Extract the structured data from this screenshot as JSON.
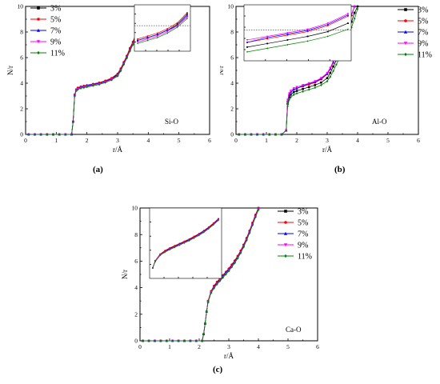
{
  "chart_data": [
    {
      "type": "line",
      "caption": "(a)",
      "annotation": "Si-O",
      "xlabel": "r/Å",
      "ylabel": "N/r",
      "xlim": [
        0,
        6
      ],
      "ylim": [
        0,
        10
      ],
      "xticks": [
        0,
        1,
        2,
        3,
        4,
        5,
        6
      ],
      "yticks": [
        0,
        2,
        4,
        6,
        8,
        10
      ],
      "legend_position": "top-left",
      "inset": "top-right",
      "series": [
        {
          "name": "3%",
          "color": "#000000",
          "marker": "square",
          "x": [
            0.1,
            0.3,
            0.5,
            0.7,
            0.9,
            1.1,
            1.3,
            1.5,
            1.55,
            1.6,
            1.65,
            1.7,
            1.8,
            1.9,
            2.0,
            2.2,
            2.4,
            2.6,
            2.8,
            3.0,
            3.1,
            3.2,
            3.3,
            3.4,
            3.5,
            3.6,
            3.7,
            3.8,
            3.9
          ],
          "y": [
            0,
            0,
            0,
            0,
            0,
            0,
            0,
            0,
            1.0,
            3.1,
            3.5,
            3.6,
            3.7,
            3.75,
            3.8,
            3.9,
            4.0,
            4.15,
            4.35,
            4.7,
            5.1,
            5.6,
            6.1,
            6.7,
            7.2,
            7.8,
            8.5,
            9.2,
            9.9
          ]
        },
        {
          "name": "5%",
          "color": "#ff0000",
          "marker": "circle",
          "x": [
            0.1,
            0.3,
            0.5,
            0.7,
            0.9,
            1.1,
            1.3,
            1.5,
            1.55,
            1.6,
            1.65,
            1.7,
            1.8,
            1.9,
            2.0,
            2.2,
            2.4,
            2.6,
            2.8,
            3.0,
            3.1,
            3.2,
            3.3,
            3.4,
            3.5,
            3.6,
            3.7,
            3.8,
            3.9
          ],
          "y": [
            0,
            0,
            0,
            0,
            0,
            0,
            0,
            0,
            1.0,
            3.1,
            3.5,
            3.65,
            3.75,
            3.8,
            3.85,
            3.95,
            4.05,
            4.2,
            4.4,
            4.75,
            5.15,
            5.65,
            6.15,
            6.75,
            7.25,
            7.85,
            8.55,
            9.25,
            9.95
          ]
        },
        {
          "name": "7%",
          "color": "#0000ff",
          "marker": "triangle",
          "x": [
            0.1,
            0.3,
            0.5,
            0.7,
            0.9,
            1.1,
            1.3,
            1.5,
            1.55,
            1.6,
            1.65,
            1.7,
            1.8,
            1.9,
            2.0,
            2.2,
            2.4,
            2.6,
            2.8,
            3.0,
            3.1,
            3.2,
            3.3,
            3.4,
            3.5,
            3.6,
            3.7,
            3.8,
            3.9
          ],
          "y": [
            0,
            0,
            0,
            0,
            0,
            0,
            0,
            0,
            1.0,
            3.05,
            3.45,
            3.6,
            3.7,
            3.75,
            3.8,
            3.9,
            4.0,
            4.15,
            4.3,
            4.65,
            5.05,
            5.55,
            6.05,
            6.6,
            7.1,
            7.7,
            8.4,
            9.1,
            9.8
          ]
        },
        {
          "name": "9%",
          "color": "#ff00ff",
          "marker": "triangle-down",
          "x": [
            0.1,
            0.3,
            0.5,
            0.7,
            0.9,
            1.1,
            1.3,
            1.5,
            1.55,
            1.6,
            1.65,
            1.7,
            1.8,
            1.9,
            2.0,
            2.2,
            2.4,
            2.6,
            2.8,
            3.0,
            3.1,
            3.2,
            3.3,
            3.4,
            3.5,
            3.6,
            3.7,
            3.8,
            3.9
          ],
          "y": [
            0,
            0,
            0,
            0,
            0,
            0,
            0,
            0,
            1.0,
            3.05,
            3.45,
            3.55,
            3.65,
            3.7,
            3.75,
            3.85,
            3.95,
            4.1,
            4.3,
            4.6,
            5.0,
            5.5,
            6.0,
            6.55,
            7.05,
            7.65,
            8.35,
            9.05,
            9.75
          ]
        },
        {
          "name": "11%",
          "color": "#008000",
          "marker": "diamond",
          "x": [
            0.1,
            0.3,
            0.5,
            0.7,
            0.9,
            1.1,
            1.3,
            1.5,
            1.55,
            1.6,
            1.65,
            1.7,
            1.8,
            1.9,
            2.0,
            2.2,
            2.4,
            2.6,
            2.8,
            3.0,
            3.1,
            3.2,
            3.3,
            3.4,
            3.5,
            3.6,
            3.7,
            3.8,
            3.9
          ],
          "y": [
            0,
            0,
            0,
            0,
            0,
            0,
            0,
            0,
            1.0,
            3.0,
            3.4,
            3.5,
            3.6,
            3.65,
            3.7,
            3.8,
            3.9,
            4.05,
            4.25,
            4.55,
            4.95,
            5.45,
            5.95,
            6.5,
            7.0,
            7.6,
            8.3,
            9.0,
            9.7
          ]
        }
      ]
    },
    {
      "type": "line",
      "caption": "(b)",
      "annotation": "Al-O",
      "xlabel": "r/Å",
      "ylabel": "N/r",
      "xlim": [
        0,
        6
      ],
      "ylim": [
        0,
        10
      ],
      "xticks": [
        0,
        1,
        2,
        3,
        4,
        5,
        6
      ],
      "yticks": [
        0,
        2,
        4,
        6,
        8,
        10
      ],
      "legend_position": "top-right",
      "inset": "top-left",
      "series": [
        {
          "name": "3%",
          "color": "#000000",
          "marker": "square",
          "x": [
            0.1,
            0.3,
            0.5,
            0.7,
            0.9,
            1.1,
            1.3,
            1.5,
            1.65,
            1.7,
            1.75,
            1.8,
            1.9,
            2.0,
            2.2,
            2.4,
            2.6,
            2.8,
            3.0,
            3.1,
            3.2,
            3.3,
            3.4,
            3.5,
            3.6,
            3.7,
            3.8,
            3.9,
            4.0
          ],
          "y": [
            0,
            0,
            0,
            0,
            0,
            0,
            0,
            0,
            0.3,
            2.4,
            2.9,
            3.1,
            3.3,
            3.4,
            3.55,
            3.7,
            3.85,
            4.05,
            4.4,
            4.8,
            5.3,
            5.8,
            6.3,
            6.9,
            7.5,
            8.1,
            8.8,
            9.5,
            10.0
          ]
        },
        {
          "name": "5%",
          "color": "#ff0000",
          "marker": "circle",
          "x": [
            0.1,
            0.3,
            0.5,
            0.7,
            0.9,
            1.1,
            1.3,
            1.5,
            1.65,
            1.7,
            1.75,
            1.8,
            1.9,
            2.0,
            2.2,
            2.4,
            2.6,
            2.8,
            3.0,
            3.1,
            3.2,
            3.3,
            3.4,
            3.5,
            3.6,
            3.7,
            3.8,
            3.9
          ],
          "y": [
            0,
            0,
            0,
            0,
            0,
            0,
            0,
            0,
            0.3,
            2.6,
            3.1,
            3.3,
            3.5,
            3.6,
            3.75,
            3.9,
            4.05,
            4.3,
            4.7,
            5.1,
            5.6,
            6.1,
            6.7,
            7.3,
            7.9,
            8.6,
            9.3,
            10.0
          ]
        },
        {
          "name": "7%",
          "color": "#0000ff",
          "marker": "triangle",
          "x": [
            0.1,
            0.3,
            0.5,
            0.7,
            0.9,
            1.1,
            1.3,
            1.5,
            1.65,
            1.7,
            1.75,
            1.8,
            1.9,
            2.0,
            2.2,
            2.4,
            2.6,
            2.8,
            3.0,
            3.1,
            3.2,
            3.3,
            3.4,
            3.5,
            3.6,
            3.7,
            3.8,
            3.9
          ],
          "y": [
            0,
            0,
            0,
            0,
            0,
            0,
            0,
            0,
            0.3,
            2.6,
            3.1,
            3.3,
            3.5,
            3.6,
            3.8,
            3.95,
            4.1,
            4.35,
            4.75,
            5.15,
            5.65,
            6.15,
            6.75,
            7.35,
            7.95,
            8.65,
            9.35,
            10.0
          ]
        },
        {
          "name": "9%",
          "color": "#ff00ff",
          "marker": "triangle-down",
          "x": [
            0.1,
            0.3,
            0.5,
            0.7,
            0.9,
            1.1,
            1.3,
            1.5,
            1.65,
            1.7,
            1.75,
            1.8,
            1.9,
            2.0,
            2.2,
            2.4,
            2.6,
            2.8,
            3.0,
            3.1,
            3.2,
            3.3,
            3.4,
            3.5,
            3.6,
            3.7,
            3.8,
            3.9
          ],
          "y": [
            0,
            0,
            0,
            0,
            0,
            0,
            0,
            0,
            0.3,
            2.7,
            3.2,
            3.4,
            3.6,
            3.7,
            3.85,
            4.0,
            4.15,
            4.4,
            4.8,
            5.2,
            5.7,
            6.2,
            6.8,
            7.4,
            8.0,
            8.7,
            9.4,
            10.0
          ]
        },
        {
          "name": "11%",
          "color": "#008000",
          "marker": "diamond",
          "x": [
            0.1,
            0.3,
            0.5,
            0.7,
            0.9,
            1.1,
            1.3,
            1.5,
            1.65,
            1.7,
            1.75,
            1.8,
            1.9,
            2.0,
            2.2,
            2.4,
            2.6,
            2.8,
            3.0,
            3.1,
            3.2,
            3.3,
            3.4,
            3.5,
            3.6,
            3.7,
            3.8,
            3.9,
            4.0
          ],
          "y": [
            0,
            0,
            0,
            0,
            0,
            0,
            0,
            0,
            0.3,
            2.2,
            2.7,
            2.9,
            3.1,
            3.2,
            3.35,
            3.5,
            3.65,
            3.85,
            4.15,
            4.5,
            4.95,
            5.45,
            5.95,
            6.5,
            7.1,
            7.7,
            8.35,
            9.05,
            9.8
          ]
        }
      ]
    },
    {
      "type": "line",
      "caption": "(c)",
      "annotation": "Ca-O",
      "xlabel": "r/Å",
      "ylabel": "N/r",
      "xlim": [
        0,
        6
      ],
      "ylim": [
        0,
        10
      ],
      "xticks": [
        0,
        1,
        2,
        3,
        4,
        5,
        6
      ],
      "yticks": [
        0,
        2,
        4,
        6,
        8,
        10
      ],
      "legend_position": "top-right",
      "inset": "top-left",
      "series": [
        {
          "name": "3%",
          "color": "#000000",
          "marker": "square",
          "x": [
            0.1,
            0.3,
            0.5,
            0.7,
            0.9,
            1.1,
            1.3,
            1.5,
            1.7,
            1.9,
            2.1,
            2.15,
            2.2,
            2.25,
            2.3,
            2.4,
            2.5,
            2.6,
            2.7,
            2.8,
            2.9,
            3.0,
            3.1,
            3.2,
            3.3,
            3.4,
            3.5,
            3.6,
            3.7,
            3.8,
            3.9,
            4.0
          ],
          "y": [
            0,
            0,
            0,
            0,
            0,
            0,
            0,
            0,
            0,
            0,
            0,
            0.5,
            1.3,
            2.2,
            3.0,
            3.7,
            4.1,
            4.4,
            4.65,
            4.9,
            5.15,
            5.4,
            5.7,
            6.0,
            6.35,
            6.75,
            7.2,
            7.7,
            8.25,
            8.85,
            9.45,
            10.0
          ]
        },
        {
          "name": "5%",
          "color": "#ff0000",
          "marker": "circle",
          "x": [
            0.1,
            0.3,
            0.5,
            0.7,
            0.9,
            1.1,
            1.3,
            1.5,
            1.7,
            1.9,
            2.1,
            2.15,
            2.2,
            2.25,
            2.3,
            2.4,
            2.5,
            2.6,
            2.7,
            2.8,
            2.9,
            3.0,
            3.1,
            3.2,
            3.3,
            3.4,
            3.5,
            3.6,
            3.7,
            3.8,
            3.9,
            4.0
          ],
          "y": [
            0,
            0,
            0,
            0,
            0,
            0,
            0,
            0,
            0,
            0,
            0,
            0.5,
            1.3,
            2.2,
            3.0,
            3.75,
            4.15,
            4.45,
            4.7,
            4.95,
            5.2,
            5.45,
            5.75,
            6.05,
            6.4,
            6.8,
            7.25,
            7.75,
            8.3,
            8.9,
            9.5,
            10.0
          ]
        },
        {
          "name": "7%",
          "color": "#0000ff",
          "marker": "triangle",
          "x": [
            0.1,
            0.3,
            0.5,
            0.7,
            0.9,
            1.1,
            1.3,
            1.5,
            1.7,
            1.9,
            2.1,
            2.15,
            2.2,
            2.25,
            2.3,
            2.4,
            2.5,
            2.6,
            2.7,
            2.8,
            2.9,
            3.0,
            3.1,
            3.2,
            3.3,
            3.4,
            3.5,
            3.6,
            3.7,
            3.8,
            3.9,
            4.0
          ],
          "y": [
            0,
            0,
            0,
            0,
            0,
            0,
            0,
            0,
            0,
            0,
            0,
            0.5,
            1.3,
            2.2,
            2.95,
            3.65,
            4.05,
            4.35,
            4.6,
            4.85,
            5.1,
            5.35,
            5.65,
            5.95,
            6.3,
            6.7,
            7.15,
            7.65,
            8.2,
            8.8,
            9.4,
            9.95
          ]
        },
        {
          "name": "9%",
          "color": "#ff00ff",
          "marker": "triangle-down",
          "x": [
            0.1,
            0.3,
            0.5,
            0.7,
            0.9,
            1.1,
            1.3,
            1.5,
            1.7,
            1.9,
            2.1,
            2.15,
            2.2,
            2.25,
            2.3,
            2.4,
            2.5,
            2.6,
            2.7,
            2.8,
            2.9,
            3.0,
            3.1,
            3.2,
            3.3,
            3.4,
            3.5,
            3.6,
            3.7,
            3.8,
            3.9,
            4.0
          ],
          "y": [
            0,
            0,
            0,
            0,
            0,
            0,
            0,
            0,
            0,
            0,
            0,
            0.5,
            1.3,
            2.2,
            2.95,
            3.65,
            4.0,
            4.3,
            4.55,
            4.8,
            5.05,
            5.3,
            5.6,
            5.9,
            6.25,
            6.65,
            7.1,
            7.6,
            8.15,
            8.75,
            9.35,
            9.9
          ]
        },
        {
          "name": "11%",
          "color": "#008000",
          "marker": "diamond",
          "x": [
            0.1,
            0.3,
            0.5,
            0.7,
            0.9,
            1.1,
            1.3,
            1.5,
            1.7,
            1.9,
            2.1,
            2.15,
            2.2,
            2.25,
            2.3,
            2.4,
            2.5,
            2.6,
            2.7,
            2.8,
            2.9,
            3.0,
            3.1,
            3.2,
            3.3,
            3.4,
            3.5,
            3.6,
            3.7,
            3.8,
            3.9,
            4.0
          ],
          "y": [
            0,
            0,
            0,
            0,
            0,
            0,
            0,
            0,
            0,
            0,
            0,
            0.5,
            1.3,
            2.2,
            2.9,
            3.6,
            3.95,
            4.25,
            4.5,
            4.75,
            5.0,
            5.25,
            5.55,
            5.85,
            6.2,
            6.6,
            7.05,
            7.55,
            8.1,
            8.7,
            9.3,
            9.85
          ]
        }
      ]
    }
  ]
}
